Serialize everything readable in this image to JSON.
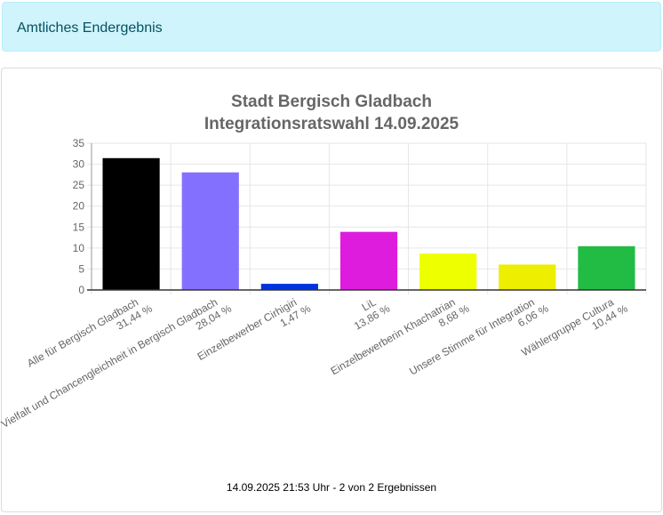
{
  "banner": {
    "text": "Amtliches Endergebnis"
  },
  "chart_data": {
    "type": "bar",
    "title": [
      "Stadt Bergisch Gladbach",
      "Integrationsratswahl 14.09.2025"
    ],
    "xlabel": "",
    "ylabel": "",
    "ylim": [
      0,
      35
    ],
    "yticks": [
      0,
      5,
      10,
      15,
      20,
      25,
      30,
      35
    ],
    "grid": true,
    "categories": [
      [
        "Alle für Bergisch Gladbach",
        "31,44 %"
      ],
      [
        "Vielfalt und Chancengleichheit in Bergisch Gladbach",
        "28,04 %"
      ],
      [
        "Einzelbewerber Cirhigiri",
        "1,47 %"
      ],
      [
        "LiL",
        "13,86 %"
      ],
      [
        "Einzelbewerberin Khachatrian",
        "8,68 %"
      ],
      [
        "Unsere Stimme für Integration",
        "6,06 %"
      ],
      [
        "Wählergruppe Cultura",
        "10,44 %"
      ]
    ],
    "values": [
      31.44,
      28.04,
      1.47,
      13.86,
      8.68,
      6.06,
      10.44
    ],
    "colors": [
      "#000000",
      "#8470ff",
      "#0033dd",
      "#dd1cdd",
      "#eeff00",
      "#eeee00",
      "#22bb44"
    ]
  },
  "footer": {
    "text": "14.09.2025 21:53 Uhr - 2 von 2 Ergebnissen"
  }
}
